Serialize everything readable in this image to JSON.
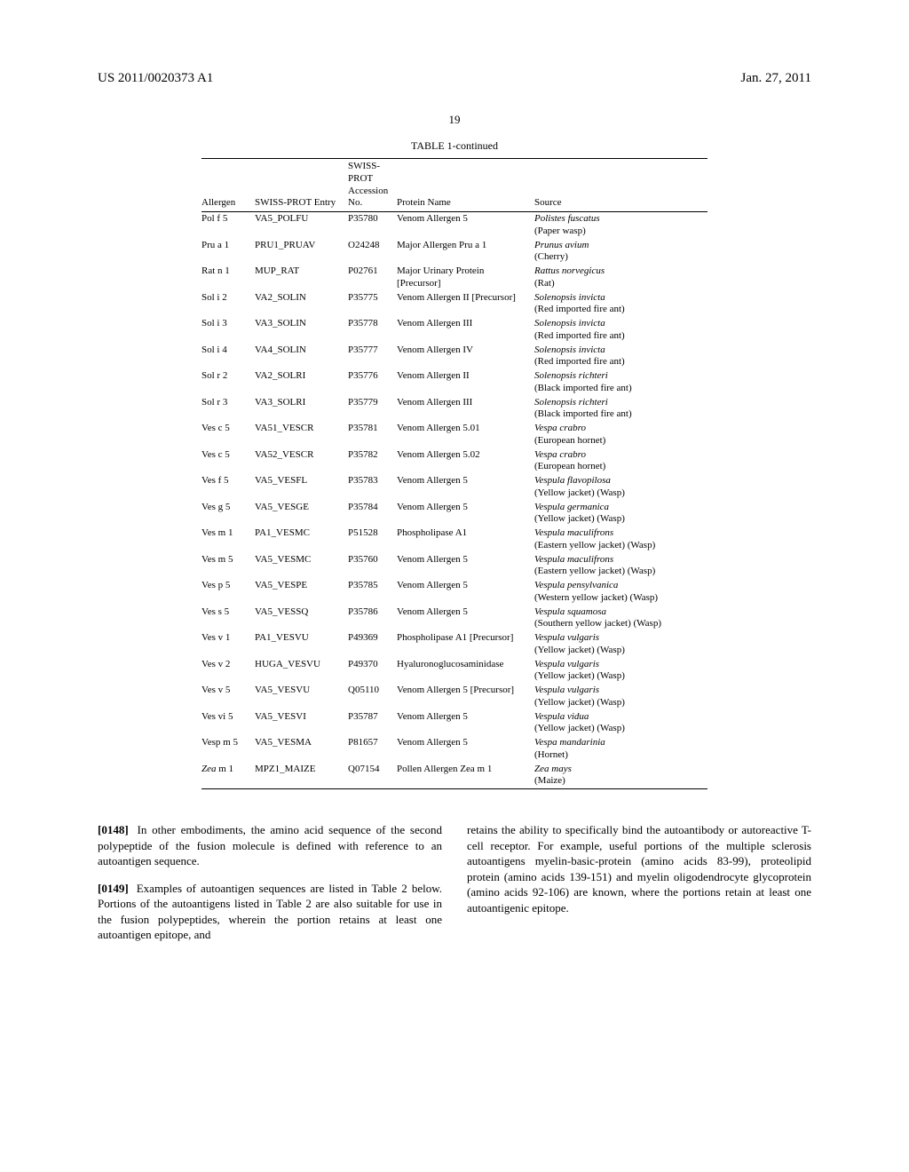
{
  "header": {
    "pub_number": "US 2011/0020373 A1",
    "pub_date": "Jan. 27, 2011"
  },
  "page_number": "19",
  "table": {
    "title": "TABLE 1-continued",
    "columns": {
      "allergen": "Allergen",
      "entry": "SWISS-PROT Entry",
      "accession": "SWISS-PROT Accession No.",
      "protein": "Protein Name",
      "source": "Source"
    },
    "rows": [
      {
        "allergen": "Pol f 5",
        "entry": "VA5_POLFU",
        "acc": "P35780",
        "protein": "Venom Allergen 5",
        "source_it": "Polistes fuscatus",
        "source_plain": "(Paper wasp)"
      },
      {
        "allergen": "Pru a 1",
        "entry": "PRU1_PRUAV",
        "acc": "O24248",
        "protein": "Major Allergen Pru a 1",
        "source_it": "Prunus avium",
        "source_plain": "(Cherry)"
      },
      {
        "allergen": "Rat n 1",
        "entry": "MUP_RAT",
        "acc": "P02761",
        "protein": "Major Urinary Protein [Precursor]",
        "source_it": "Rattus norvegicus",
        "source_plain": "(Rat)"
      },
      {
        "allergen": "Sol i 2",
        "entry": "VA2_SOLIN",
        "acc": "P35775",
        "protein": "Venom Allergen II [Precursor]",
        "source_it": "Solenopsis invicta",
        "source_plain": "(Red imported fire ant)"
      },
      {
        "allergen": "Sol i 3",
        "entry": "VA3_SOLIN",
        "acc": "P35778",
        "protein": "Venom Allergen III",
        "source_it": "Solenopsis invicta",
        "source_plain": "(Red imported fire ant)"
      },
      {
        "allergen": "Sol i 4",
        "entry": "VA4_SOLIN",
        "acc": "P35777",
        "protein": "Venom Allergen IV",
        "source_it": "Solenopsis invicta",
        "source_plain": "(Red imported fire ant)"
      },
      {
        "allergen": "Sol r 2",
        "entry": "VA2_SOLRI",
        "acc": "P35776",
        "protein": "Venom Allergen II",
        "source_it": "Solenopsis richteri",
        "source_plain": "(Black imported fire ant)"
      },
      {
        "allergen": "Sol r 3",
        "entry": "VA3_SOLRI",
        "acc": "P35779",
        "protein": "Venom Allergen III",
        "source_it": "Solenopsis richteri",
        "source_plain": "(Black imported fire ant)"
      },
      {
        "allergen": "Ves c 5",
        "entry": "VA51_VESCR",
        "acc": "P35781",
        "protein": "Venom Allergen 5.01",
        "source_it": "Vespa crabro",
        "source_plain": "(European hornet)"
      },
      {
        "allergen": "Ves c 5",
        "entry": "VA52_VESCR",
        "acc": "P35782",
        "protein": "Venom Allergen 5.02",
        "source_it": "Vespa crabro",
        "source_plain": "(European hornet)"
      },
      {
        "allergen": "Ves f 5",
        "entry": "VA5_VESFL",
        "acc": "P35783",
        "protein": "Venom Allergen 5",
        "source_it": "Vespula flavopilosa",
        "source_plain": "(Yellow jacket) (Wasp)"
      },
      {
        "allergen": "Ves g 5",
        "entry": "VA5_VESGE",
        "acc": "P35784",
        "protein": "Venom Allergen 5",
        "source_it": "Vespula germanica",
        "source_plain": "(Yellow jacket) (Wasp)"
      },
      {
        "allergen": "Ves m 1",
        "entry": "PA1_VESMC",
        "acc": "P51528",
        "protein": "Phospholipase A1",
        "source_it": "Vespula maculifrons",
        "source_plain": "(Eastern yellow jacket) (Wasp)"
      },
      {
        "allergen": "Ves m 5",
        "entry": "VA5_VESMC",
        "acc": "P35760",
        "protein": "Venom Allergen 5",
        "source_it": "Vespula maculifrons",
        "source_plain": "(Eastern yellow jacket) (Wasp)"
      },
      {
        "allergen": "Ves p 5",
        "entry": "VA5_VESPE",
        "acc": "P35785",
        "protein": "Venom Allergen 5",
        "source_it": "Vespula pensylvanica",
        "source_plain": "(Western yellow jacket) (Wasp)"
      },
      {
        "allergen": "Ves s 5",
        "entry": "VA5_VESSQ",
        "acc": "P35786",
        "protein": "Venom Allergen 5",
        "source_it": "Vespula squamosa",
        "source_plain": "(Southern yellow jacket) (Wasp)"
      },
      {
        "allergen": "Ves v 1",
        "entry": "PA1_VESVU",
        "acc": "P49369",
        "protein": "Phospholipase A1 [Precursor]",
        "source_it": "Vespula vulgaris",
        "source_plain": "(Yellow jacket) (Wasp)"
      },
      {
        "allergen": "Ves v 2",
        "entry": "HUGA_VESVU",
        "acc": "P49370",
        "protein": "Hyaluronoglucosaminidase",
        "source_it": "Vespula vulgaris",
        "source_plain": "(Yellow jacket) (Wasp)"
      },
      {
        "allergen": "Ves v 5",
        "entry": "VA5_VESVU",
        "acc": "Q05110",
        "protein": "Venom Allergen 5 [Precursor]",
        "source_it": "Vespula vulgaris",
        "source_plain": "(Yellow jacket) (Wasp)"
      },
      {
        "allergen": "Ves vi 5",
        "entry": "VA5_VESVI",
        "acc": "P35787",
        "protein": "Venom Allergen 5",
        "source_it": "Vespula vidua",
        "source_plain": "(Yellow jacket) (Wasp)"
      },
      {
        "allergen": "Vesp m 5",
        "entry": "VA5_VESMA",
        "acc": "P81657",
        "protein": "Venom Allergen 5",
        "source_it": "Vespa mandarinia",
        "source_plain": "(Hornet)"
      },
      {
        "allergen_it": "Zea",
        "allergen_plain": " m 1",
        "entry": "MPZ1_MAIZE",
        "acc": "Q07154",
        "protein": "Pollen Allergen Zea m 1",
        "source_it": "Zea mays",
        "source_plain": " (Maize)"
      }
    ]
  },
  "paragraphs": {
    "p148_num": "[0148]",
    "p148": "In other embodiments, the amino acid sequence of the second polypeptide of the fusion molecule is defined with reference to an autoantigen sequence.",
    "p149_num": "[0149]",
    "p149": "Examples of autoantigen sequences are listed in Table 2 below. Portions of the autoantigens listed in Table 2 are also suitable for use in the fusion polypeptides, wherein the portion retains at least one autoantigen epitope, and",
    "right_col": "retains the ability to specifically bind the autoantibody or autoreactive T-cell receptor. For example, useful portions of the multiple sclerosis autoantigens myelin-basic-protein (amino acids 83-99), proteolipid protein (amino acids 139-151) and myelin oligodendrocyte glycoprotein (amino acids 92-106) are known, where the portions retain at least one autoantigenic epitope."
  }
}
